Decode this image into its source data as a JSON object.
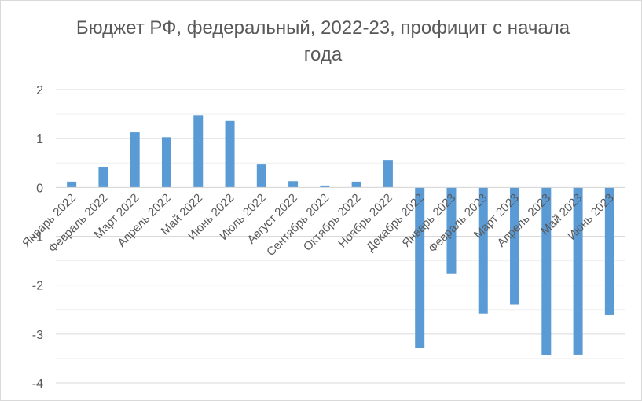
{
  "chart_data": {
    "type": "bar",
    "title": "Бюджет РФ, федеральный, 2022-23,  профицит с начала года",
    "xlabel": "",
    "ylabel": "",
    "ylim": [
      -4,
      2
    ],
    "yticks": [
      2,
      1,
      0,
      -1,
      -2,
      -3,
      -4
    ],
    "ytick_labels": [
      "2",
      "1",
      "0",
      "-1",
      "-2",
      "-3",
      "-4"
    ],
    "grid": "horizontal",
    "legend": "none",
    "bar_color": "#5b9bd5",
    "categories": [
      "Январь 2022",
      "Февраль 2022",
      "Март 2022",
      "Апрель 2022",
      "Май 2022",
      "Июнь 2022",
      "Июль 2022",
      "Август 2022",
      "Сентябрь 2022",
      "Октябрь 2022",
      "Ноябрь 2022",
      "Декабрь 2022",
      "Январь 2023",
      "Февраль 2023",
      "Март 2023",
      "Апрель 2023",
      "Май 2023",
      "Июнь 2023"
    ],
    "values": [
      0.12,
      0.41,
      1.13,
      1.03,
      1.48,
      1.36,
      0.47,
      0.13,
      0.04,
      0.12,
      0.55,
      -3.29,
      -1.76,
      -2.58,
      -2.4,
      -3.43,
      -3.42,
      -2.6
    ]
  }
}
